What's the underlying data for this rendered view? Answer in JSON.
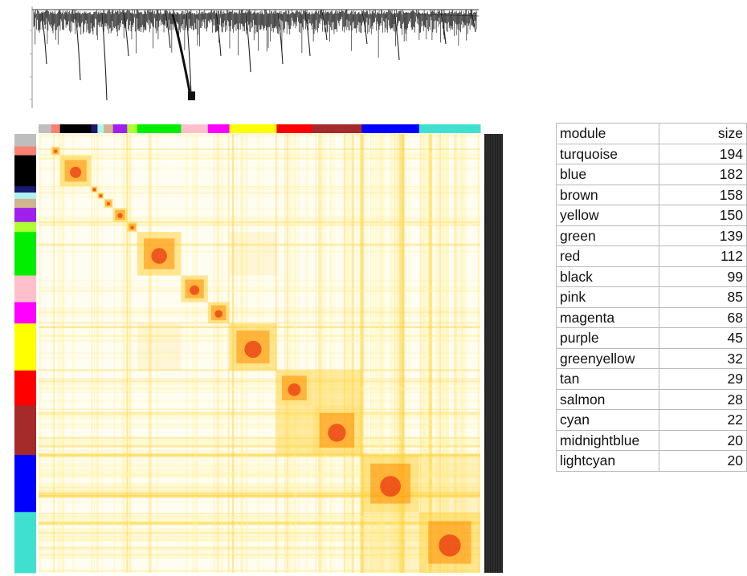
{
  "table": {
    "headers": [
      "module",
      "size"
    ],
    "rows": [
      {
        "module": "turquoise",
        "size": "194"
      },
      {
        "module": "blue",
        "size": "182"
      },
      {
        "module": "brown",
        "size": "158"
      },
      {
        "module": "yellow",
        "size": "150"
      },
      {
        "module": "green",
        "size": "139"
      },
      {
        "module": "red",
        "size": "112"
      },
      {
        "module": "black",
        "size": "99"
      },
      {
        "module": "pink",
        "size": "85"
      },
      {
        "module": "magenta",
        "size": "68"
      },
      {
        "module": "purple",
        "size": "45"
      },
      {
        "module": "greenyellow",
        "size": "32"
      },
      {
        "module": "tan",
        "size": "29"
      },
      {
        "module": "salmon",
        "size": "28"
      },
      {
        "module": "cyan",
        "size": "22"
      },
      {
        "module": "midnightblue",
        "size": "20"
      },
      {
        "module": "lightcyan",
        "size": "20"
      }
    ]
  },
  "chart_data": {
    "type": "heatmap",
    "title": "",
    "dendrogram": true,
    "module_order": [
      "grey",
      "salmon",
      "black",
      "midnightblue",
      "lightcyan",
      "tan",
      "purple",
      "greenyellow",
      "green",
      "pink",
      "magenta",
      "yellow",
      "red",
      "brown",
      "blue",
      "turquoise"
    ],
    "module_colors": {
      "grey": "#bebebe",
      "salmon": "#fa8072",
      "black": "#000000",
      "midnightblue": "#191970",
      "lightcyan": "#aef2f2",
      "tan": "#d2b48c",
      "purple": "#a020f0",
      "greenyellow": "#adff2f",
      "green": "#00ee00",
      "pink": "#ffc0cb",
      "magenta": "#ff00ff",
      "yellow": "#ffff00",
      "red": "#ff0000",
      "brown": "#a52a2a",
      "blue": "#0000ff",
      "turquoise": "#40e0d0"
    },
    "color_scale": [
      "#ffffff",
      "#fff3a0",
      "#ffd23c",
      "#ff8c00",
      "#e83010"
    ]
  }
}
